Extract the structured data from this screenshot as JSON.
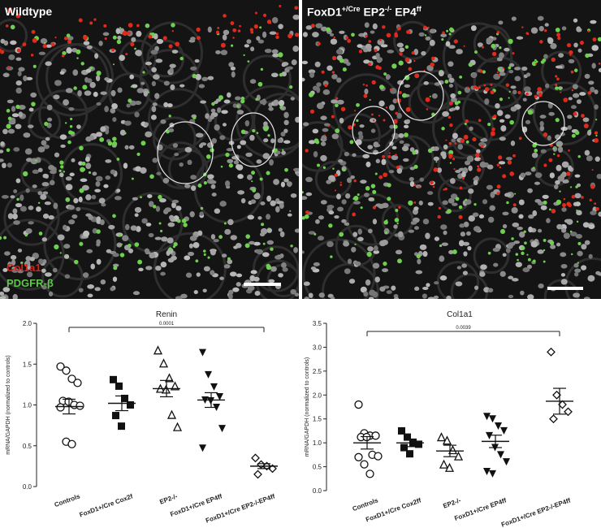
{
  "panels": {
    "left": {
      "title": "Wildtype",
      "legend_red": "Col1a1",
      "legend_green": "PDGFR-β"
    },
    "right": {
      "title_main": "FoxD1",
      "title_sup1": "+/Cre",
      "title_mid": " EP2",
      "title_sup2": "-/-",
      "title_mid2": " EP4",
      "title_sup3": "ff"
    }
  },
  "chart_data": [
    {
      "type": "scatter",
      "title": "Renin",
      "ylabel": "mRNA/GAPDH (normalized to controls)",
      "ylim": [
        0,
        2.0
      ],
      "yticks": [
        "0.0",
        "0.5",
        "1.0",
        "1.5",
        "2.0"
      ],
      "pvalue": "0.0001",
      "categories": [
        {
          "label": "Controls",
          "marker": "circle-open",
          "mean": 0.98,
          "sem": 0.09,
          "values": [
            1.47,
            1.42,
            1.32,
            1.27,
            1.05,
            1.04,
            1.0,
            0.99,
            0.97,
            0.55,
            0.52
          ]
        },
        {
          "label": "FoxD1+/Cre Cox2f",
          "marker": "square-filled",
          "mean": 1.02,
          "sem": 0.09,
          "values": [
            1.31,
            1.23,
            1.08,
            1.0,
            0.87,
            0.74
          ]
        },
        {
          "label": "EP2-/-",
          "marker": "triangle-open",
          "mean": 1.2,
          "sem": 0.1,
          "values": [
            1.67,
            1.51,
            1.33,
            1.23,
            1.2,
            1.19,
            0.88,
            0.73
          ]
        },
        {
          "label": "FoxD1+/Cre EP4ff",
          "marker": "triangle-down-filled",
          "mean": 1.06,
          "sem": 0.09,
          "values": [
            1.64,
            1.37,
            1.22,
            1.1,
            1.06,
            1.05,
            0.97,
            0.71,
            0.47
          ]
        },
        {
          "label": "FoxD1+/Cre EP2-/-EP4ff",
          "marker": "diamond-open",
          "mean": 0.25,
          "sem": 0.03,
          "values": [
            0.35,
            0.27,
            0.25,
            0.22,
            0.15
          ]
        }
      ]
    },
    {
      "type": "scatter",
      "title": "Col1a1",
      "ylabel": "mRNA/GAPDH (normalized to controls)",
      "ylim": [
        0,
        3.5
      ],
      "yticks": [
        "0.0",
        "0.5",
        "1.0",
        "1.5",
        "2.0",
        "2.5",
        "3.0",
        "3.5"
      ],
      "pvalue": "0.0039",
      "categories": [
        {
          "label": "Controls",
          "marker": "circle-open",
          "mean": 1.0,
          "sem": 0.13,
          "values": [
            1.8,
            1.2,
            1.15,
            1.15,
            1.12,
            1.12,
            0.75,
            0.72,
            0.7,
            0.55,
            0.35
          ]
        },
        {
          "label": "FoxD1+/Cre Cox2ff",
          "marker": "square-filled",
          "mean": 1.0,
          "sem": 0.08,
          "values": [
            1.25,
            1.12,
            1.0,
            0.97,
            0.9,
            0.77
          ]
        },
        {
          "label": "EP2-/-",
          "marker": "triangle-open",
          "mean": 0.83,
          "sem": 0.12,
          "values": [
            1.12,
            1.05,
            0.85,
            0.72,
            0.55,
            0.48
          ]
        },
        {
          "label": "FoxD1+/Cre EP4ff",
          "marker": "triangle-down-filled",
          "mean": 1.03,
          "sem": 0.13,
          "values": [
            1.55,
            1.5,
            1.35,
            1.25,
            1.15,
            0.9,
            0.75,
            0.6,
            0.4,
            0.35
          ]
        },
        {
          "label": "FoxD1+/Cre EP2-/-EP4ff",
          "marker": "diamond-open",
          "mean": 1.87,
          "sem": 0.27,
          "values": [
            2.9,
            2.0,
            1.8,
            1.65,
            1.5
          ]
        }
      ]
    }
  ]
}
